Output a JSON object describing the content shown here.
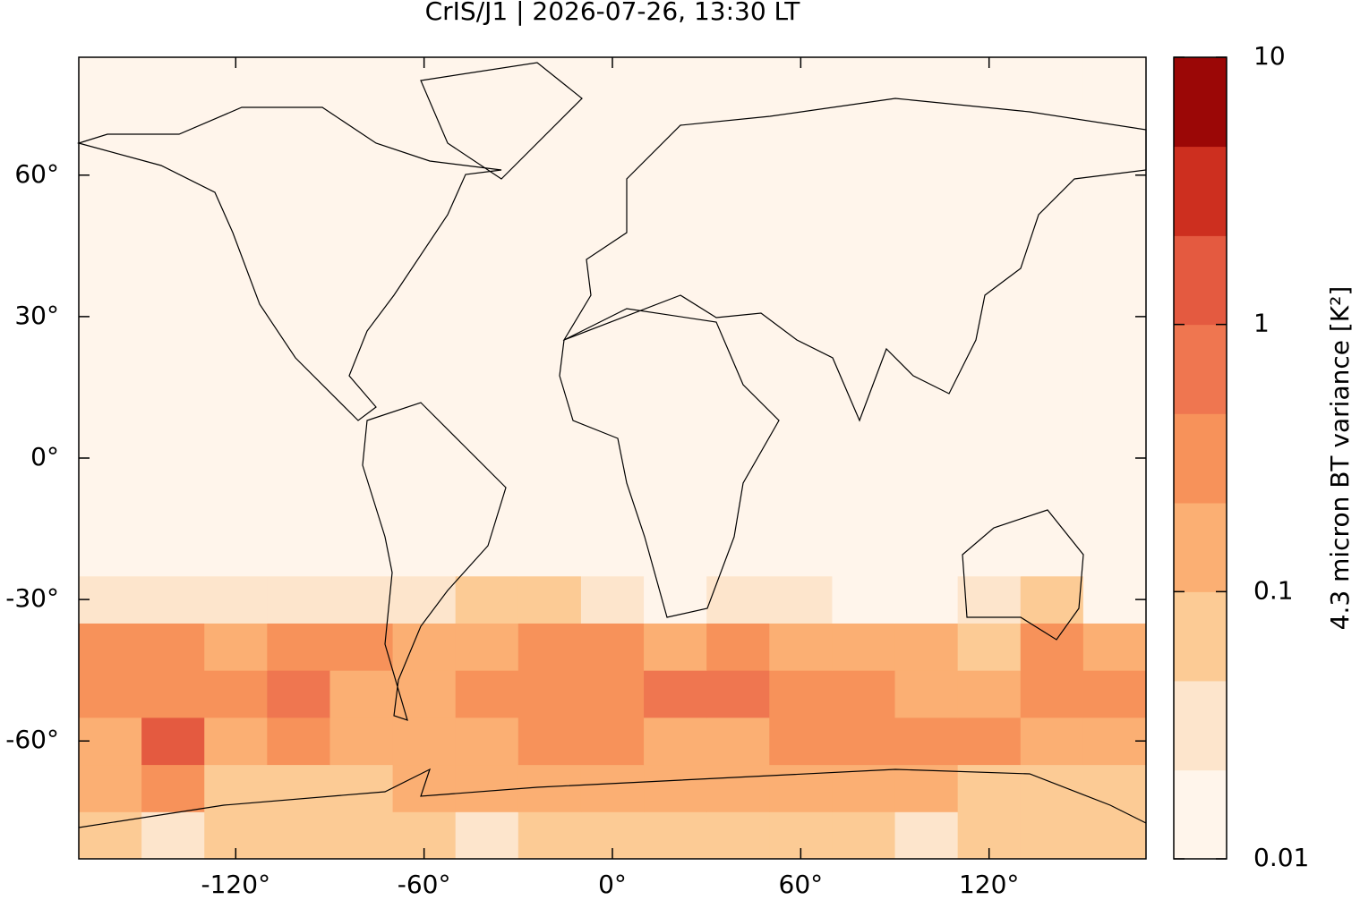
{
  "chart_data": {
    "type": "map",
    "title": "CrIS/J1 | 2026-07-26, 13:30 LT",
    "xlim": [
      -170,
      170
    ],
    "ylim": [
      -85,
      85
    ],
    "xticks": [
      {
        "value": -120,
        "label": "-120°"
      },
      {
        "value": -60,
        "label": "-60°"
      },
      {
        "value": 0,
        "label": "0°"
      },
      {
        "value": 60,
        "label": "60°"
      },
      {
        "value": 120,
        "label": "120°"
      }
    ],
    "yticks": [
      {
        "value": -60,
        "label": "-60°"
      },
      {
        "value": -30,
        "label": "-30°"
      },
      {
        "value": 0,
        "label": "0°"
      },
      {
        "value": 30,
        "label": "30°"
      },
      {
        "value": 60,
        "label": "60°"
      }
    ],
    "field": {
      "lon_edges": [
        -170,
        -150,
        -130,
        -110,
        -90,
        -70,
        -50,
        -30,
        -10,
        10,
        30,
        50,
        70,
        90,
        110,
        130,
        150,
        170
      ],
      "lat_edges": [
        -85,
        -75,
        -65,
        -55,
        -45,
        -35,
        -25,
        85
      ],
      "values": [
        [
          0.05,
          0.04,
          0.05,
          0.05,
          0.05,
          0.05,
          0.04,
          0.05,
          0.05,
          0.05,
          0.05,
          0.05,
          0.05,
          0.04,
          0.05,
          0.05,
          0.05
        ],
        [
          0.1,
          0.3,
          0.07,
          0.08,
          0.07,
          0.1,
          0.15,
          0.15,
          0.1,
          0.1,
          0.1,
          0.12,
          0.12,
          0.1,
          0.08,
          0.08,
          0.07
        ],
        [
          0.2,
          2,
          0.2,
          0.3,
          0.2,
          0.15,
          0.15,
          0.4,
          0.3,
          0.2,
          0.2,
          0.3,
          0.3,
          0.4,
          0.3,
          0.2,
          0.1
        ],
        [
          0.3,
          0.3,
          0.3,
          0.6,
          0.2,
          0.15,
          0.3,
          0.3,
          0.3,
          0.5,
          0.5,
          0.4,
          0.3,
          0.2,
          0.15,
          0.3,
          0.3
        ],
        [
          0.3,
          0.3,
          0.2,
          0.3,
          0.4,
          0.1,
          0.2,
          0.4,
          0.3,
          0.2,
          0.3,
          0.2,
          0.1,
          0.1,
          0.05,
          0.4,
          0.1
        ],
        [
          0.03,
          0.03,
          0.03,
          0.03,
          0.03,
          0.03,
          0.05,
          0.05,
          0.03,
          0.02,
          0.03,
          0.03,
          0.02,
          0.02,
          0.03,
          0.05,
          0.02
        ],
        [
          0.015,
          0.015,
          0.015,
          0.015,
          0.015,
          0.015,
          0.015,
          0.015,
          0.015,
          0.015,
          0.015,
          0.015,
          0.015,
          0.015,
          0.015,
          0.015,
          0.015
        ]
      ]
    },
    "colorbar": {
      "label": "4.3 micron BT variance [K²]",
      "log_scale": true,
      "levels": [
        0.01,
        0.0215,
        0.0464,
        0.1,
        0.215,
        0.464,
        1,
        2.15,
        4.64,
        10
      ],
      "colors": [
        "#fff5eb",
        "#fde5cc",
        "#fccb95",
        "#fbaf73",
        "#f7925a",
        "#ef7650",
        "#e45a40",
        "#cd2f1f",
        "#9b0706"
      ],
      "ticks": [
        0.01,
        0.1,
        1,
        10
      ]
    }
  }
}
